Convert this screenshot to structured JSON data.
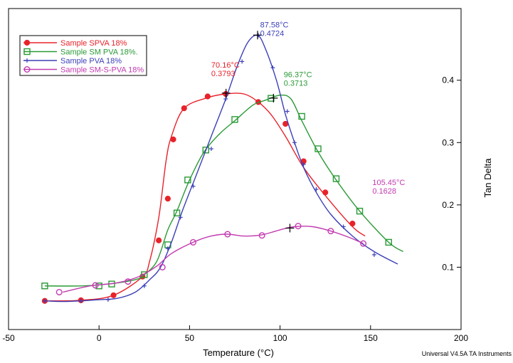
{
  "chart_data": {
    "type": "line",
    "xlabel": "Temperature (°C)",
    "ylabel": "Tan Delta",
    "xlim": [
      -50,
      200
    ],
    "ylim": [
      0.0,
      0.515
    ],
    "x_ticks": [
      -50,
      0,
      50,
      100,
      150,
      200
    ],
    "x_tick_labels": [
      "-50",
      "0",
      "50",
      "100",
      "150",
      "200"
    ],
    "y_ticks": [
      0.1,
      0.2,
      0.3,
      0.4
    ],
    "y_tick_labels": [
      "0.1",
      "0.2",
      "0.3",
      "0.4"
    ],
    "y_axis_side": "right",
    "grid": false,
    "legend_position": "top-left",
    "footer": "Universal V4.5A TA Instruments",
    "series": [
      {
        "name": "Sample SPVA 18%",
        "color": "#e8222a",
        "marker": "filled-circle",
        "x": [
          -30,
          -10,
          8,
          24,
          28,
          33,
          37,
          40,
          47,
          60,
          70,
          80,
          88,
          95,
          103,
          113,
          125,
          140,
          147
        ],
        "y": [
          0.046,
          0.047,
          0.055,
          0.085,
          0.11,
          0.18,
          0.27,
          0.31,
          0.355,
          0.372,
          0.378,
          0.378,
          0.365,
          0.345,
          0.31,
          0.26,
          0.215,
          0.165,
          0.15
        ],
        "marker_x": [
          -30,
          -10,
          8,
          24,
          33,
          38,
          41,
          47,
          60,
          70,
          88,
          103,
          113,
          125,
          140
        ],
        "marker_y": [
          0.046,
          0.047,
          0.055,
          0.085,
          0.143,
          0.21,
          0.305,
          0.355,
          0.374,
          0.378,
          0.365,
          0.33,
          0.27,
          0.22,
          0.17
        ]
      },
      {
        "name": "Sample SM PVA 18%.",
        "color": "#2a9a36",
        "marker": "open-square",
        "x": [
          -30,
          -10,
          5,
          20,
          25,
          32,
          38,
          43,
          50,
          58,
          67,
          75,
          85,
          92,
          100,
          106,
          112,
          121,
          131,
          144,
          160,
          168
        ],
        "y": [
          0.07,
          0.07,
          0.073,
          0.08,
          0.088,
          0.11,
          0.16,
          0.19,
          0.24,
          0.285,
          0.315,
          0.335,
          0.36,
          0.368,
          0.376,
          0.37,
          0.335,
          0.285,
          0.24,
          0.19,
          0.14,
          0.125
        ],
        "marker_x": [
          -30,
          0,
          7,
          25,
          38,
          43,
          49,
          59,
          75,
          95,
          112,
          121,
          131,
          144,
          160
        ],
        "marker_y": [
          0.07,
          0.07,
          0.073,
          0.088,
          0.136,
          0.187,
          0.24,
          0.288,
          0.337,
          0.371,
          0.342,
          0.29,
          0.242,
          0.19,
          0.14
        ]
      },
      {
        "name": "Sample PVA 18%",
        "color": "#3b3fb8",
        "marker": "plus-star",
        "x": [
          -30,
          -20,
          -10,
          0,
          10,
          20,
          28,
          34,
          40,
          46,
          54,
          62,
          70,
          76,
          82,
          87.6,
          92,
          98,
          103,
          108,
          113,
          120,
          128,
          140,
          152,
          165
        ],
        "y": [
          0.046,
          0.045,
          0.046,
          0.048,
          0.05,
          0.06,
          0.08,
          0.1,
          0.14,
          0.19,
          0.25,
          0.31,
          0.37,
          0.42,
          0.46,
          0.472,
          0.45,
          0.4,
          0.345,
          0.3,
          0.26,
          0.22,
          0.185,
          0.15,
          0.125,
          0.105
        ],
        "marker_x": [
          -30,
          -10,
          5,
          25,
          38,
          45,
          52,
          62,
          70,
          79,
          88,
          96,
          104,
          108,
          113,
          120,
          135,
          152
        ],
        "marker_y": [
          0.046,
          0.046,
          0.048,
          0.07,
          0.13,
          0.18,
          0.23,
          0.29,
          0.37,
          0.43,
          0.472,
          0.42,
          0.35,
          0.3,
          0.265,
          0.225,
          0.165,
          0.12
        ]
      },
      {
        "name": "Sample  SM-S-PVA 18%",
        "color": "#c23ab0",
        "marker": "open-circle",
        "x": [
          -20,
          -5,
          10,
          22,
          32,
          40,
          52,
          62,
          71,
          80,
          90,
          100,
          108,
          118,
          128,
          138,
          146
        ],
        "y": [
          0.06,
          0.07,
          0.075,
          0.085,
          0.102,
          0.122,
          0.14,
          0.15,
          0.153,
          0.15,
          0.152,
          0.16,
          0.165,
          0.165,
          0.158,
          0.148,
          0.138
        ],
        "marker_x": [
          -22,
          -2,
          16,
          35,
          52,
          71,
          90,
          110,
          128,
          146
        ],
        "marker_y": [
          0.06,
          0.071,
          0.077,
          0.1,
          0.14,
          0.153,
          0.151,
          0.166,
          0.158,
          0.138
        ]
      }
    ],
    "annotations": [
      {
        "series": 0,
        "x": 70.16,
        "y": 0.3793,
        "label1": "70.16°C",
        "label2": "0.3793",
        "text_x": 62,
        "text_y": 0.42
      },
      {
        "series": 2,
        "x": 87.58,
        "y": 0.4724,
        "label1": "87.58°C",
        "label2": "0.4724",
        "text_x": 89,
        "text_y": 0.485
      },
      {
        "series": 1,
        "x": 96.37,
        "y": 0.3713,
        "label1": "96.37°C",
        "label2": "0.3713",
        "text_x": 102,
        "text_y": 0.405
      },
      {
        "series": 3,
        "x": 105.45,
        "y": 0.1628,
        "label1": "105.45°C",
        "label2": "0.1628",
        "text_x": 151,
        "text_y": 0.232
      }
    ]
  }
}
